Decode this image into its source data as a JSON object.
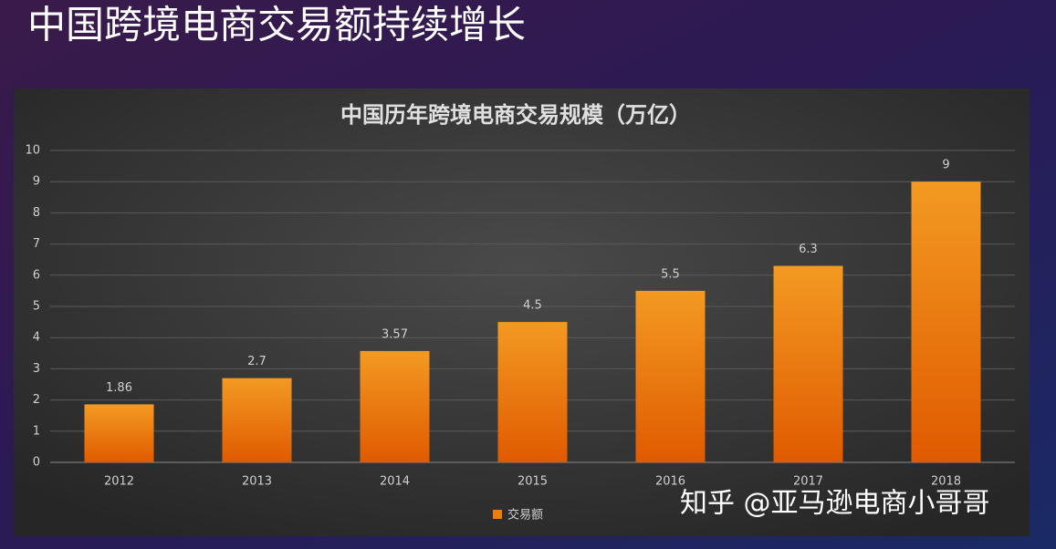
{
  "slide_title": "中国跨境电商交易额持续增长",
  "watermark": "知乎 @亚马逊电商小哥哥",
  "chart_data": {
    "type": "bar",
    "title": "中国历年跨境电商交易规模（万亿）",
    "categories": [
      "2012",
      "2013",
      "2014",
      "2015",
      "2016",
      "2017",
      "2018"
    ],
    "series": [
      {
        "name": "交易额",
        "color": "#ee7d0c",
        "values": [
          1.86,
          2.7,
          3.57,
          4.5,
          5.5,
          6.3,
          9
        ]
      }
    ],
    "ylim": [
      0,
      10
    ],
    "yticks": [
      0,
      1,
      2,
      3,
      4,
      5,
      6,
      7,
      8,
      9,
      10
    ],
    "grid": true,
    "legend": "bottom"
  }
}
